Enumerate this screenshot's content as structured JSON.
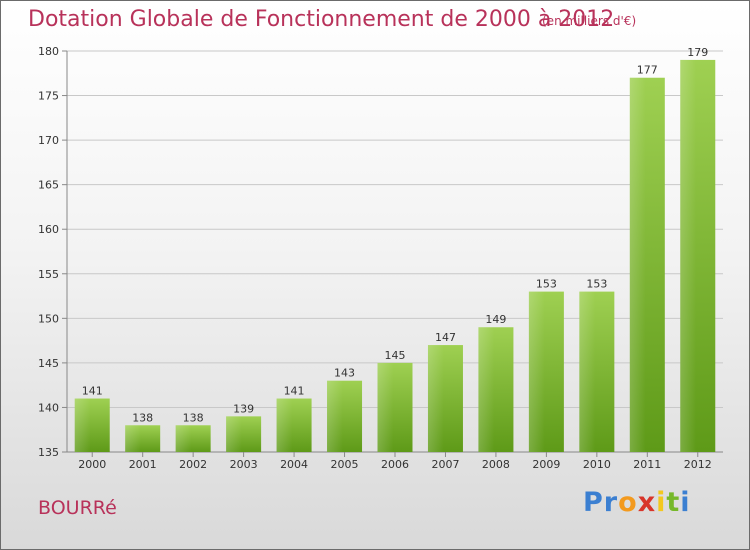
{
  "header": {
    "title": "Dotation Globale de Fonctionnement de 2000 à 2012",
    "unit": "(en milliers d'€)"
  },
  "footer": {
    "commune": "BOURRé",
    "logo_letters": [
      "P",
      "r",
      "o",
      "x",
      "i",
      "t",
      "i"
    ],
    "logo_colors": [
      "#3b7fd1",
      "#3b7fd1",
      "#f39a1e",
      "#d8352a",
      "#f3c81e",
      "#76b82a",
      "#3b7fd1"
    ]
  },
  "colors": {
    "title": "#b8325a",
    "bar_top": "#9fd052",
    "bar_bottom": "#5e9a18"
  },
  "chart_data": {
    "type": "bar",
    "title": "Dotation Globale de Fonctionnement de 2000 à 2012",
    "subtitle": "(en milliers d'€)",
    "categories": [
      "2000",
      "2001",
      "2002",
      "2003",
      "2004",
      "2005",
      "2006",
      "2007",
      "2008",
      "2009",
      "2010",
      "2011",
      "2012"
    ],
    "values": [
      141,
      138,
      138,
      139,
      141,
      143,
      145,
      147,
      149,
      153,
      153,
      177,
      179
    ],
    "ylim": [
      135,
      180
    ],
    "yticks": [
      135,
      140,
      145,
      150,
      155,
      160,
      165,
      170,
      175,
      180
    ],
    "grid": true,
    "xlabel": "",
    "ylabel": ""
  }
}
